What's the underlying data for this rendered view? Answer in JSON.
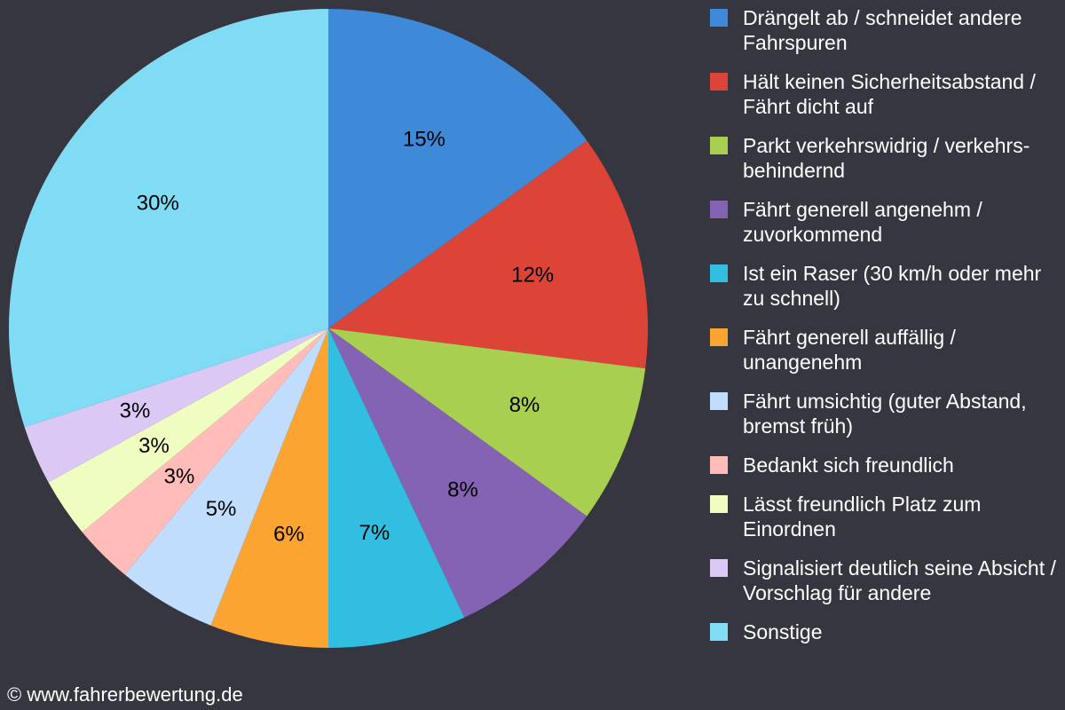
{
  "chart_data": {
    "type": "pie",
    "categories": [
      "Drängelt ab / schneidet andere Fahrspuren",
      "Hält keinen Sicherheitsabstand / Fährt dicht auf",
      "Parkt verkehrswidrig / verkehrs-behindernd",
      "Fährt generell angenehm / zuvorkommend",
      "Ist ein Raser (30 km/h oder mehr zu schnell)",
      "Fährt generell auffällig / unangenehm",
      "Fährt umsichtig (guter Abstand, bremst früh)",
      "Bedankt sich freundlich",
      "Lässt freundlich Platz zum Einordnen",
      "Signalisiert deutlich seine Absicht / Vorschlag für andere",
      "Sonstige"
    ],
    "values": [
      15,
      12,
      8,
      8,
      7,
      6,
      5,
      3,
      3,
      3,
      30
    ],
    "value_labels": [
      "15%",
      "12%",
      "8%",
      "8%",
      "7%",
      "6%",
      "5%",
      "3%",
      "3%",
      "3%",
      "30%"
    ],
    "colors": [
      "#3f8ad8",
      "#dc4438",
      "#a8cf4f",
      "#8563b4",
      "#31bee0",
      "#fca432",
      "#c0ddfe",
      "#ffbcb8",
      "#f0fdc0",
      "#dcc8f4",
      "#80dcf5"
    ],
    "legend": "right",
    "source": "© www.fahrerbewertung.de"
  }
}
